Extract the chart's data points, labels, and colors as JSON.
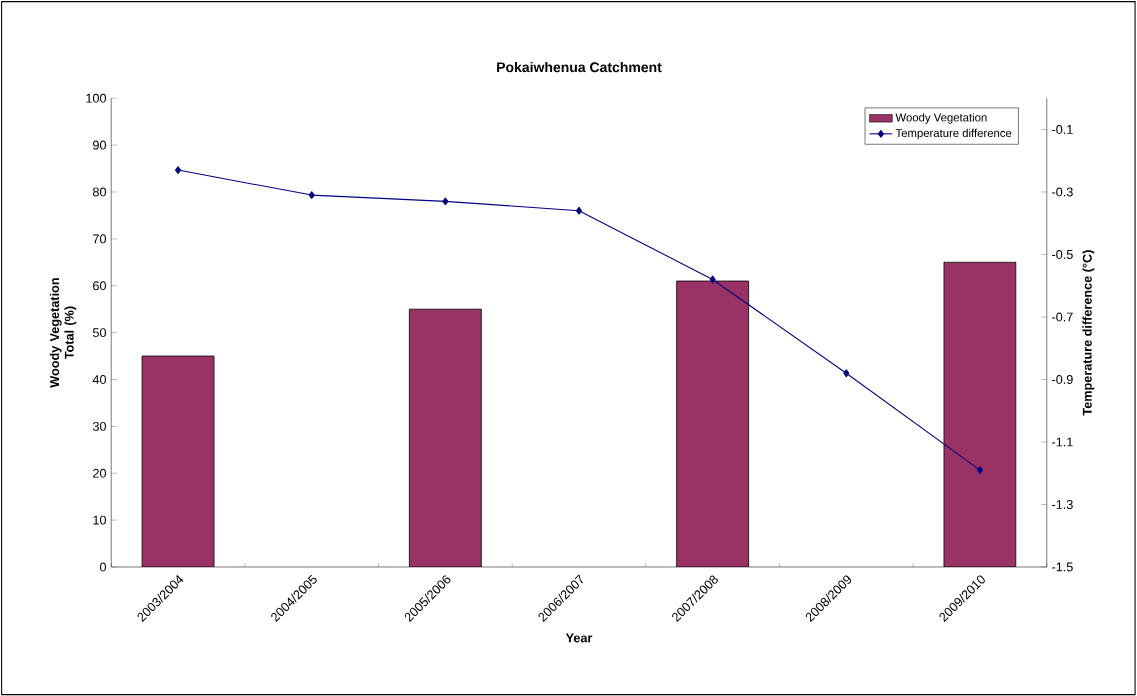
{
  "chart_data": {
    "type": "bar",
    "title": "Pokaiwhenua Catchment",
    "xlabel": "Year",
    "ylabel": "Woody Vegetation Total (%)",
    "y2label": "Temperature difference (°C)",
    "categories": [
      "2003/2004",
      "2004/2005",
      "2005/2006",
      "2006/2007",
      "2007/2008",
      "2008/2009",
      "2009/2010"
    ],
    "series": [
      {
        "name": "Woody Vegetation",
        "color": "#993366",
        "values": [
          45,
          null,
          55,
          null,
          61,
          null,
          65
        ]
      },
      {
        "name": "Temperature difference",
        "type": "line",
        "axis": "y2",
        "color": "#000080",
        "values": [
          -0.23,
          -0.31,
          -0.33,
          -0.36,
          -0.58,
          -0.88,
          -1.19
        ]
      }
    ],
    "ylim": [
      0,
      100
    ],
    "yticks": [
      0,
      10,
      20,
      30,
      40,
      50,
      60,
      70,
      80,
      90,
      100
    ],
    "y2lim": [
      -1.5,
      0
    ],
    "y2ticks": [
      -1.5,
      -1.3,
      -1.1,
      -0.9,
      -0.7,
      -0.5,
      -0.3,
      -0.1
    ],
    "marker": "diamond",
    "line_style": "solid",
    "legend": "top right"
  }
}
